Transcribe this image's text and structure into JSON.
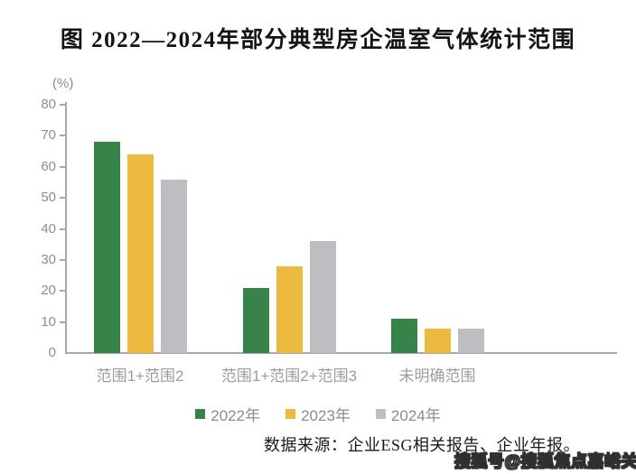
{
  "title": "图   2022—2024年部分典型房企温室气体统计范围",
  "chart_data": {
    "type": "bar",
    "title": "图 2022—2024年部分典型房企温室气体统计范围",
    "unit_label": "(%)",
    "xlabel": "",
    "ylabel": "(%)",
    "ylim": [
      0,
      80
    ],
    "yticks": [
      0,
      10,
      20,
      30,
      40,
      50,
      60,
      70,
      80
    ],
    "grid": false,
    "legend_position": "bottom",
    "categories": [
      "范围1+范围2",
      "范围1+范围2+范围3",
      "未明确范围"
    ],
    "series": [
      {
        "name": "2022年",
        "color": "#37834A",
        "values": [
          68,
          21,
          11
        ]
      },
      {
        "name": "2023年",
        "color": "#ECBA3E",
        "values": [
          64,
          28,
          8
        ]
      },
      {
        "name": "2024年",
        "color": "#BDBEC1",
        "values": [
          56,
          36,
          8
        ]
      }
    ]
  },
  "source_note": "数据来源：企业ESG相关报告、企业年报。",
  "watermark": "搜狐号@搜狐焦点嘉峪关站",
  "colors": {
    "axis": "#a8a8a8",
    "tick_text": "#8c8c8c",
    "category_text": "#9c9c9c",
    "title_text": "#141414",
    "series_2022": "#37834A",
    "series_2023": "#ECBA3E",
    "series_2024": "#BDBEC1"
  }
}
